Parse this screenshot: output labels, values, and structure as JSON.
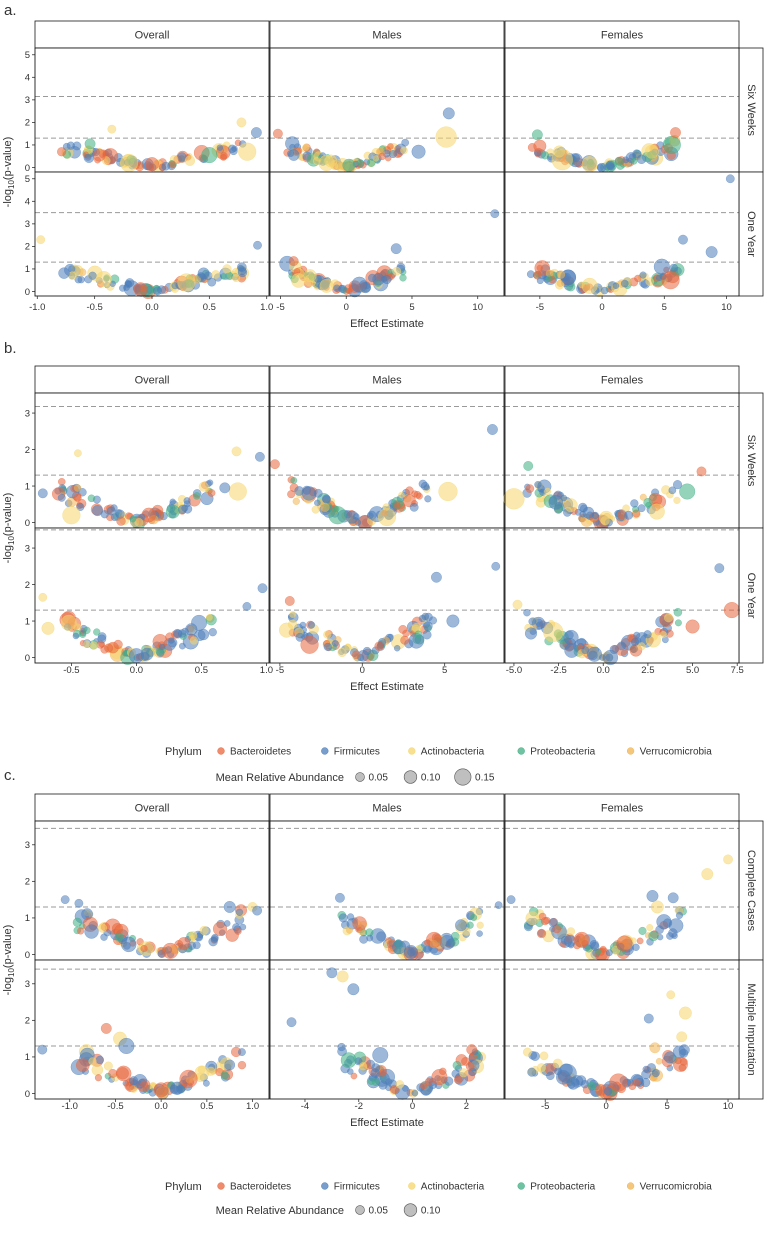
{
  "figure": {
    "y_axis_title_prefix": "-log",
    "y_axis_title_sub": "10",
    "y_axis_title_suffix": "(p-value)",
    "x_axis_title": "Effect Estimate",
    "colors": {
      "Bacteroidetes": "#E8663C",
      "Firmicutes": "#4C7DBA",
      "Actinobacteria": "#F5D66B",
      "Proteobacteria": "#3FAE83",
      "Verrucomicrobia": "#F2B451"
    },
    "phyla": [
      "Bacteroidetes",
      "Firmicutes",
      "Actinobacteria",
      "Proteobacteria",
      "Verrucomicrobia"
    ]
  },
  "chart_data": [
    {
      "type": "scatter",
      "panel_label": "a.",
      "columns": [
        "Overall",
        "Males",
        "Females"
      ],
      "rows": [
        "Six Weeks",
        "One Year"
      ],
      "x_ranges": [
        [
          -1.02,
          1.02
        ],
        [
          -5.8,
          12
        ],
        [
          -7.8,
          11
        ]
      ],
      "x_ticks": [
        [
          -1.0,
          -0.5,
          0.0,
          0.5,
          1.0
        ],
        [
          -5,
          0,
          5,
          10
        ],
        [
          -5,
          0,
          5,
          10
        ]
      ],
      "x_tick_labels": [
        [
          "-1.0",
          "-0.5",
          "0.0",
          "0.5",
          "1.0"
        ],
        [
          "-5",
          "0",
          "5",
          "10"
        ],
        [
          "-5",
          "0",
          "5",
          "10"
        ]
      ],
      "y_ranges": [
        [
          -0.2,
          5.3
        ],
        [
          -0.2,
          5.3
        ]
      ],
      "y_ticks": [
        [
          0,
          1,
          2,
          3,
          4,
          5
        ],
        [
          0,
          1,
          2,
          3,
          4,
          5
        ]
      ],
      "thresholds": [
        [
          1.3,
          3.15
        ],
        [
          1.3,
          3.5
        ]
      ],
      "highlights": [
        [
          [
            [
              -0.54,
              1.05,
              "Proteobacteria",
              0.05
            ],
            [
              -0.46,
              0.55,
              "Bacteroidetes",
              0.07
            ],
            [
              -0.35,
              1.7,
              "Actinobacteria",
              0.03
            ],
            [
              0.5,
              0.55,
              "Proteobacteria",
              0.1
            ],
            [
              0.78,
              2.0,
              "Actinobacteria",
              0.04
            ],
            [
              0.83,
              0.7,
              "Actinobacteria",
              0.12
            ],
            [
              0.91,
              1.55,
              "Firmicutes",
              0.05
            ],
            [
              -0.2,
              0.2,
              "Actinobacteria",
              0.12
            ],
            [
              0.0,
              0.15,
              "Bacteroidetes",
              0.08
            ]
          ],
          [
            [
              -5.2,
              1.5,
              "Bacteroidetes",
              0.04
            ],
            [
              7.8,
              2.4,
              "Firmicutes",
              0.06
            ],
            [
              7.6,
              1.35,
              "Actinobacteria",
              0.15
            ],
            [
              5.5,
              0.7,
              "Firmicutes",
              0.08
            ],
            [
              -1.5,
              0.2,
              "Actinobacteria",
              0.1
            ],
            [
              0.2,
              0.1,
              "Proteobacteria",
              0.07
            ]
          ],
          [
            [
              -5.2,
              1.45,
              "Proteobacteria",
              0.05
            ],
            [
              -5.0,
              0.95,
              "Bacteroidetes",
              0.07
            ],
            [
              -3.2,
              0.35,
              "Actinobacteria",
              0.15
            ],
            [
              5.6,
              1.0,
              "Proteobacteria",
              0.12
            ],
            [
              5.9,
              1.55,
              "Bacteroidetes",
              0.05
            ],
            [
              4.0,
              0.7,
              "Actinobacteria",
              0.08
            ],
            [
              -1.0,
              0.15,
              "Actinobacteria",
              0.1
            ]
          ]
        ],
        [
          [
            [
              -0.97,
              2.3,
              "Actinobacteria",
              0.03
            ],
            [
              0.92,
              2.05,
              "Firmicutes",
              0.03
            ],
            [
              -0.42,
              0.55,
              "Actinobacteria",
              0.1
            ],
            [
              0.3,
              0.4,
              "Actinobacteria",
              0.12
            ],
            [
              0.45,
              0.8,
              "Firmicutes",
              0.06
            ],
            [
              -0.1,
              0.1,
              "Bacteroidetes",
              0.08
            ]
          ],
          [
            [
              11.3,
              3.45,
              "Firmicutes",
              0.03
            ],
            [
              3.8,
              1.9,
              "Firmicutes",
              0.05
            ],
            [
              -4.0,
              1.35,
              "Bacteroidetes",
              0.04
            ],
            [
              1.0,
              0.3,
              "Firmicutes",
              0.1
            ],
            [
              -1.5,
              0.25,
              "Actinobacteria",
              0.08
            ]
          ],
          [
            [
              10.3,
              5.0,
              "Firmicutes",
              0.03
            ],
            [
              6.5,
              2.3,
              "Firmicutes",
              0.04
            ],
            [
              4.8,
              1.1,
              "Firmicutes",
              0.1
            ],
            [
              5.5,
              0.5,
              "Bacteroidetes",
              0.12
            ],
            [
              8.8,
              1.75,
              "Firmicutes",
              0.06
            ],
            [
              -1.0,
              0.25,
              "Actinobacteria",
              0.1
            ]
          ]
        ]
      ],
      "xlabel": "Effect Estimate"
    },
    {
      "type": "scatter",
      "panel_label": "b.",
      "columns": [
        "Overall",
        "Males",
        "Females"
      ],
      "rows": [
        "Six Weeks",
        "One Year"
      ],
      "x_ranges": [
        [
          -0.78,
          1.02
        ],
        [
          -5.6,
          8.6
        ],
        [
          -5.5,
          7.6
        ]
      ],
      "x_ticks": [
        [
          -0.5,
          0.0,
          0.5,
          1.0
        ],
        [
          -5,
          0,
          5
        ],
        [
          -5.0,
          -2.5,
          0.0,
          2.5,
          5.0,
          7.5
        ]
      ],
      "x_tick_labels": [
        [
          "-0.5",
          "0.0",
          "0.5",
          "1.0"
        ],
        [
          "-5",
          "0",
          "5"
        ],
        [
          "-5.0",
          "-2.5",
          "0.0",
          "2.5",
          "5.0",
          "7.5"
        ]
      ],
      "y_ranges": [
        [
          -0.15,
          3.55
        ],
        [
          -0.15,
          3.55
        ]
      ],
      "y_ticks": [
        [
          0,
          1,
          2,
          3
        ],
        [
          0,
          1,
          2,
          3
        ]
      ],
      "thresholds": [
        [
          1.3,
          3.18
        ],
        [
          1.3,
          3.5
        ]
      ],
      "highlights": [
        [
          [
            [
              -0.72,
              0.8,
              "Firmicutes",
              0.04
            ],
            [
              -0.45,
              1.9,
              "Actinobacteria",
              0.02
            ],
            [
              0.77,
              1.95,
              "Actinobacteria",
              0.04
            ],
            [
              0.95,
              1.8,
              "Firmicutes",
              0.04
            ],
            [
              0.78,
              0.85,
              "Actinobacteria",
              0.12
            ],
            [
              0.68,
              0.95,
              "Firmicutes",
              0.05
            ],
            [
              0.28,
              0.3,
              "Proteobacteria",
              0.08
            ],
            [
              -0.5,
              0.2,
              "Actinobacteria",
              0.12
            ]
          ],
          [
            [
              -5.3,
              1.6,
              "Bacteroidetes",
              0.04
            ],
            [
              7.9,
              2.55,
              "Firmicutes",
              0.05
            ],
            [
              5.2,
              0.85,
              "Actinobacteria",
              0.13
            ],
            [
              -1.5,
              0.2,
              "Proteobacteria",
              0.12
            ],
            [
              1.5,
              0.15,
              "Actinobacteria",
              0.12
            ]
          ],
          [
            [
              -5.0,
              0.65,
              "Actinobacteria",
              0.15
            ],
            [
              -4.2,
              1.55,
              "Proteobacteria",
              0.04
            ],
            [
              4.7,
              0.85,
              "Proteobacteria",
              0.1
            ],
            [
              5.5,
              1.4,
              "Bacteroidetes",
              0.04
            ],
            [
              3.0,
              0.3,
              "Actinobacteria",
              0.1
            ]
          ]
        ],
        [
          [
            [
              -0.72,
              1.65,
              "Actinobacteria",
              0.03
            ],
            [
              0.97,
              1.9,
              "Firmicutes",
              0.04
            ],
            [
              -0.52,
              0.95,
              "Actinobacteria",
              0.1
            ],
            [
              -0.68,
              0.8,
              "Actinobacteria",
              0.07
            ],
            [
              0.85,
              1.4,
              "Firmicutes",
              0.03
            ],
            [
              0.0,
              0.05,
              "Firmicutes",
              0.09
            ]
          ],
          [
            [
              8.1,
              2.5,
              "Firmicutes",
              0.03
            ],
            [
              4.5,
              2.2,
              "Firmicutes",
              0.05
            ],
            [
              -4.4,
              1.55,
              "Bacteroidetes",
              0.04
            ],
            [
              -3.2,
              0.35,
              "Bacteroidetes",
              0.12
            ],
            [
              5.5,
              1.0,
              "Firmicutes",
              0.07
            ],
            [
              -4.6,
              0.75,
              "Actinobacteria",
              0.09
            ]
          ],
          [
            [
              6.5,
              2.45,
              "Firmicutes",
              0.04
            ],
            [
              7.2,
              1.3,
              "Bacteroidetes",
              0.1
            ],
            [
              -2.8,
              0.7,
              "Actinobacteria",
              0.14
            ],
            [
              -4.8,
              1.45,
              "Actinobacteria",
              0.04
            ],
            [
              5.0,
              0.85,
              "Bacteroidetes",
              0.08
            ],
            [
              -1.8,
              0.55,
              "Firmicutes",
              0.09
            ]
          ]
        ]
      ],
      "xlabel": "Effect Estimate"
    },
    {
      "type": "scatter",
      "panel_label": "c.",
      "columns": [
        "Overall",
        "Males",
        "Females"
      ],
      "rows": [
        "Complete Cases",
        "Multiple Imputation"
      ],
      "x_ranges": [
        [
          -1.38,
          1.18
        ],
        [
          -5.3,
          3.4
        ],
        [
          -8.3,
          10.9
        ]
      ],
      "x_ticks": [
        [
          -1.0,
          -0.5,
          0.0,
          0.5,
          1.0
        ],
        [
          -4,
          -2,
          0,
          2
        ],
        [
          -5,
          0,
          5,
          10
        ]
      ],
      "x_tick_labels": [
        [
          "-1.0",
          "-0.5",
          "0.0",
          "0.5",
          "1.0"
        ],
        [
          "-4",
          "-2",
          "0",
          "2"
        ],
        [
          "-5",
          "0",
          "5",
          "10"
        ]
      ],
      "y_ranges": [
        [
          -0.15,
          3.65
        ],
        [
          -0.15,
          3.65
        ]
      ],
      "y_ticks": [
        [
          0,
          1,
          2,
          3
        ],
        [
          0,
          1,
          2,
          3
        ]
      ],
      "thresholds": [
        [
          1.3,
          3.45
        ],
        [
          1.3,
          3.4
        ]
      ],
      "highlights": [
        [
          [
            [
              -1.05,
              1.5,
              "Firmicutes",
              0.03
            ],
            [
              -0.9,
              1.4,
              "Firmicutes",
              0.03
            ],
            [
              0.75,
              1.3,
              "Firmicutes",
              0.06
            ],
            [
              1.0,
              1.3,
              "Actinobacteria",
              0.04
            ],
            [
              1.05,
              1.2,
              "Firmicutes",
              0.04
            ],
            [
              0.1,
              0.1,
              "Bacteroidetes",
              0.1
            ],
            [
              0.25,
              0.3,
              "Bacteroidetes",
              0.07
            ]
          ],
          [
            [
              -2.7,
              1.55,
              "Firmicutes",
              0.04
            ],
            [
              3.2,
              1.35,
              "Firmicutes",
              0.02
            ],
            [
              1.8,
              0.8,
              "Firmicutes",
              0.06
            ],
            [
              0.8,
              0.4,
              "Bacteroidetes",
              0.1
            ],
            [
              -0.5,
              0.2,
              "Firmicutes",
              0.08
            ]
          ],
          [
            [
              10.0,
              2.6,
              "Actinobacteria",
              0.04
            ],
            [
              8.3,
              2.2,
              "Actinobacteria",
              0.06
            ],
            [
              5.5,
              1.55,
              "Firmicutes",
              0.05
            ],
            [
              3.8,
              1.6,
              "Firmicutes",
              0.06
            ],
            [
              4.2,
              1.3,
              "Actinobacteria",
              0.07
            ],
            [
              -7.8,
              1.5,
              "Firmicutes",
              0.03
            ],
            [
              -2.0,
              0.4,
              "Bacteroidetes",
              0.1
            ],
            [
              1.5,
              0.3,
              "Bacteroidetes",
              0.1
            ]
          ]
        ],
        [
          [
            [
              -1.3,
              1.2,
              "Firmicutes",
              0.04
            ],
            [
              -0.6,
              1.78,
              "Bacteroidetes",
              0.05
            ],
            [
              -0.45,
              1.5,
              "Actinobacteria",
              0.08
            ],
            [
              -0.38,
              1.3,
              "Firmicutes",
              0.1
            ],
            [
              0.3,
              0.4,
              "Bacteroidetes",
              0.12
            ],
            [
              0.75,
              0.78,
              "Firmicutes",
              0.05
            ],
            [
              0.0,
              0.1,
              "Bacteroidetes",
              0.09
            ]
          ],
          [
            [
              -3.0,
              3.3,
              "Firmicutes",
              0.05
            ],
            [
              -2.6,
              3.2,
              "Actinobacteria",
              0.06
            ],
            [
              -2.2,
              2.85,
              "Firmicutes",
              0.06
            ],
            [
              -4.5,
              1.95,
              "Firmicutes",
              0.04
            ],
            [
              2.2,
              1.2,
              "Bacteroidetes",
              0.05
            ],
            [
              -1.2,
              1.05,
              "Firmicutes",
              0.1
            ],
            [
              1.0,
              0.45,
              "Bacteroidetes",
              0.1
            ]
          ],
          [
            [
              5.3,
              2.7,
              "Actinobacteria",
              0.03
            ],
            [
              6.5,
              2.2,
              "Actinobacteria",
              0.07
            ],
            [
              3.5,
              2.05,
              "Firmicutes",
              0.04
            ],
            [
              6.2,
              1.55,
              "Actinobacteria",
              0.05
            ],
            [
              4.0,
              1.25,
              "Verrucomicrobia",
              0.05
            ],
            [
              -3.2,
              0.55,
              "Firmicutes",
              0.13
            ],
            [
              1.0,
              0.3,
              "Bacteroidetes",
              0.12
            ]
          ]
        ]
      ],
      "xlabel": "Effect Estimate"
    }
  ],
  "legends": [
    {
      "phylum_title": "Phylum",
      "phyla": [
        "Bacteroidetes",
        "Firmicutes",
        "Actinobacteria",
        "Proteobacteria",
        "Verrucomicrobia"
      ],
      "size_title": "Mean Relative Abundance",
      "size_values": [
        0.05,
        0.1,
        0.15
      ],
      "size_labels": [
        "0.05",
        "0.10",
        "0.15"
      ]
    },
    {
      "phylum_title": "Phylum",
      "phyla": [
        "Bacteroidetes",
        "Firmicutes",
        "Actinobacteria",
        "Proteobacteria",
        "Verrucomicrobia"
      ],
      "size_title": "Mean Relative Abundance",
      "size_values": [
        0.05,
        0.1
      ],
      "size_labels": [
        "0.05",
        "0.10"
      ]
    }
  ]
}
